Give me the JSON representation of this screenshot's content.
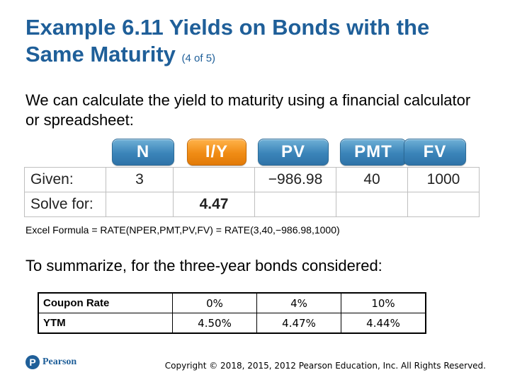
{
  "title": {
    "main": "Example 6.11 Yields on Bonds with the Same Maturity",
    "sub": "(4 of 5)"
  },
  "intro": "We can calculate the yield to maturity using a financial calculator or spreadsheet:",
  "calculator": {
    "keys": [
      "N",
      "I/Y",
      "PV",
      "PMT",
      "FV"
    ],
    "active_key": "I/Y",
    "active_color": "#f08c14",
    "key_color": "#3a84b9",
    "rows": [
      {
        "label": "Given:",
        "values": [
          "3",
          "",
          "−986.98",
          "40",
          "1000"
        ]
      },
      {
        "label": "Solve for:",
        "values": [
          "",
          "4.47",
          "",
          "",
          ""
        ]
      }
    ]
  },
  "excel_formula": "Excel Formula = RATE(NPER,PMT,PV,FV) = RATE(3,40,−986.98,1000)",
  "summary_intro": "To summarize, for the three-year bonds considered:",
  "summary_table": {
    "rows": [
      {
        "label": "Coupon Rate",
        "values": [
          "0%",
          "4%",
          "10%"
        ]
      },
      {
        "label": "YTM",
        "values": [
          "4.50%",
          "4.47%",
          "4.44%"
        ]
      }
    ]
  },
  "footer": {
    "logo_letter": "P",
    "logo_text": "Pearson",
    "copyright": "Copyright © 2018, 2015, 2012 Pearson Education, Inc. All Rights Reserved."
  },
  "colors": {
    "title": "#1f5f99"
  }
}
